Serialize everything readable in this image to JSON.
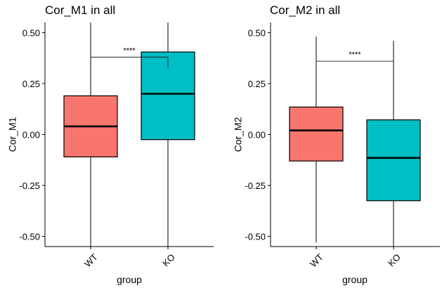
{
  "chart_data": [
    {
      "type": "box",
      "title": "Cor_M1 in all",
      "xlabel": "group",
      "ylabel": "Cor_M1",
      "ylim": [
        -0.55,
        0.55
      ],
      "yticks": [
        0.5,
        0.25,
        0.0,
        -0.25,
        -0.5
      ],
      "ytick_labels": [
        "0.50",
        "0.25",
        "0.00",
        "-0.25",
        "-0.50"
      ],
      "grid": false,
      "categories": [
        "WT",
        "KO"
      ],
      "series": [
        {
          "category": "WT",
          "color": "#F8766D",
          "min": -0.55,
          "q1": -0.11,
          "median": 0.04,
          "q3": 0.19,
          "max": 0.55
        },
        {
          "category": "KO",
          "color": "#00BFC4",
          "min": -0.55,
          "q1": -0.025,
          "median": 0.2,
          "q3": 0.405,
          "max": 0.55
        }
      ],
      "significance": {
        "label": "****",
        "y": 0.38,
        "y_end_right": 0.33
      }
    },
    {
      "type": "box",
      "title": "Cor_M2 in all",
      "xlabel": "group",
      "ylabel": "Cor_M2",
      "ylim": [
        -0.55,
        0.55
      ],
      "yticks": [
        0.5,
        0.25,
        0.0,
        -0.25,
        -0.5
      ],
      "ytick_labels": [
        "0.50",
        "0.25",
        "0.00",
        "-0.25",
        "-0.50"
      ],
      "grid": false,
      "categories": [
        "WT",
        "KO"
      ],
      "series": [
        {
          "category": "WT",
          "color": "#F8766D",
          "min": -0.53,
          "q1": -0.13,
          "median": 0.02,
          "q3": 0.135,
          "max": 0.48
        },
        {
          "category": "KO",
          "color": "#00BFC4",
          "min": -0.55,
          "q1": -0.325,
          "median": -0.115,
          "q3": 0.072,
          "max": 0.46
        }
      ],
      "significance": {
        "label": "****",
        "y": 0.36,
        "y_end_right": 0.36
      }
    }
  ]
}
